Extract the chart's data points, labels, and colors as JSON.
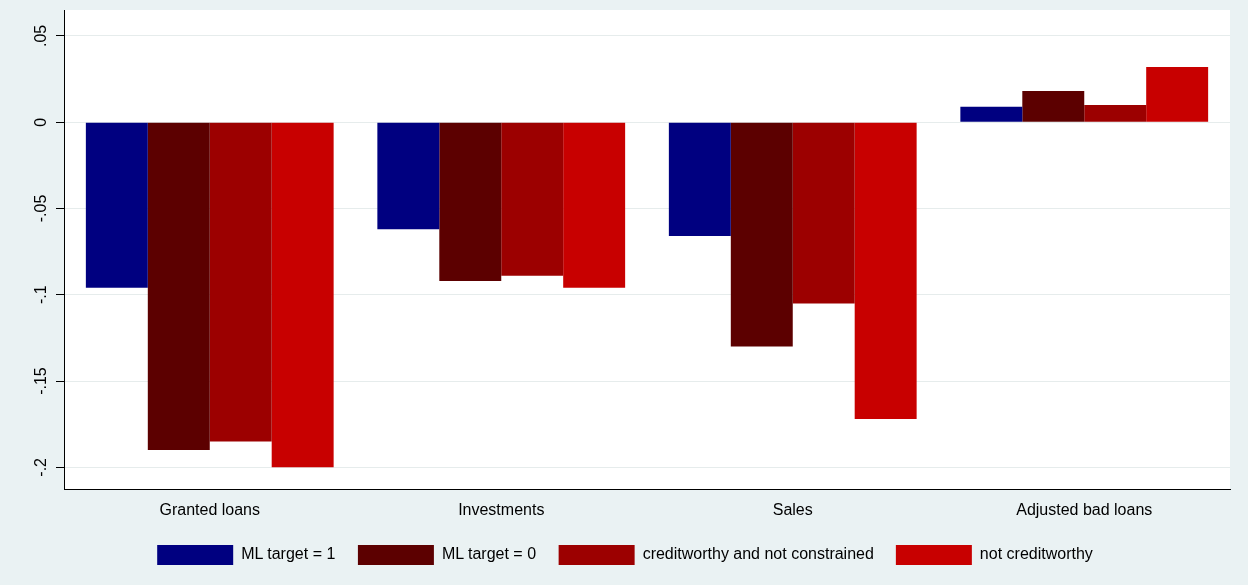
{
  "chart_data": {
    "type": "bar",
    "categories": [
      "Granted loans",
      "Investments",
      "Sales",
      "Adjusted bad loans"
    ],
    "series": [
      {
        "name": "ML target = 1",
        "color": "#000080",
        "values": [
          -0.096,
          -0.062,
          -0.066,
          0.009
        ]
      },
      {
        "name": "ML target = 0",
        "color": "#5c0000",
        "values": [
          -0.19,
          -0.092,
          -0.13,
          0.018
        ]
      },
      {
        "name": "creditworthy and not constrained",
        "color": "#9c0000",
        "values": [
          -0.185,
          -0.089,
          -0.105,
          0.01
        ]
      },
      {
        "name": "not creditworthy",
        "color": "#c80000",
        "values": [
          -0.2,
          -0.096,
          -0.172,
          0.032
        ]
      }
    ],
    "ylim": [
      -0.213,
      0.065
    ],
    "yticks": [
      {
        "value": -0.2,
        "label": "-.2"
      },
      {
        "value": -0.15,
        "label": "-.15"
      },
      {
        "value": -0.1,
        "label": "-.1"
      },
      {
        "value": -0.05,
        "label": "-.05"
      },
      0,
      {
        "value": 0.05,
        "label": ".05"
      }
    ],
    "grid": "y",
    "legend": "bottom"
  }
}
